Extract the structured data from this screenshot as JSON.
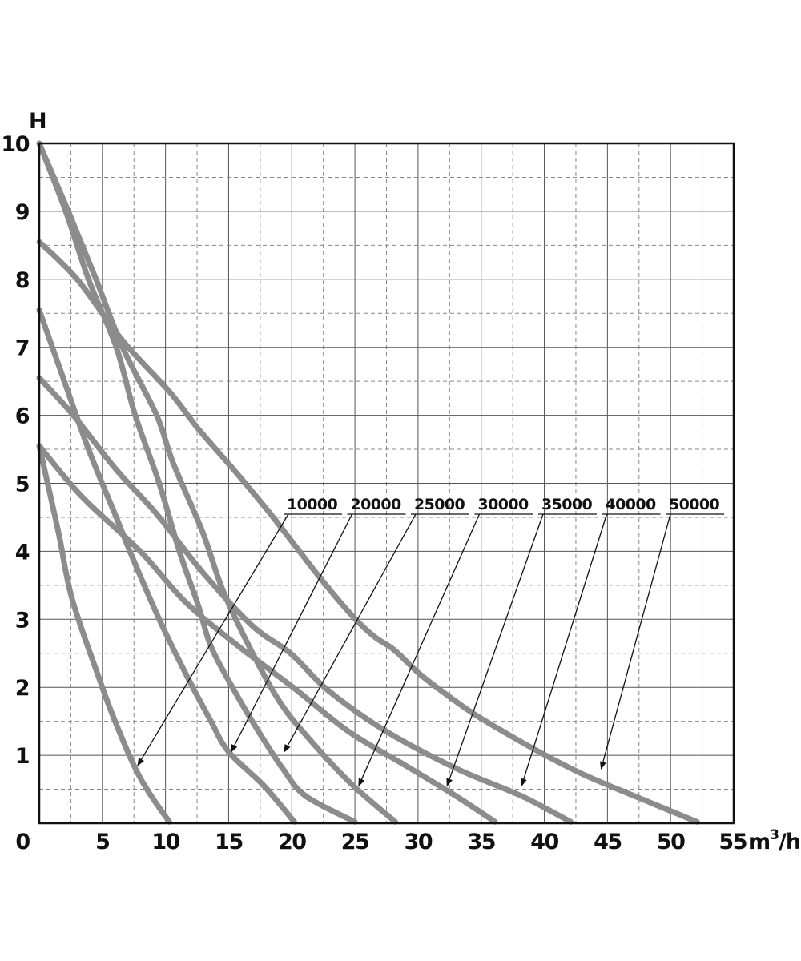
{
  "chart_data": {
    "type": "line",
    "title": "",
    "xlabel": "m³/h",
    "ylabel": "H",
    "xlim": [
      0,
      55
    ],
    "ylim": [
      0,
      10
    ],
    "x_ticks": [
      "0",
      "5",
      "10",
      "15",
      "20",
      "25",
      "30",
      "35",
      "40",
      "45",
      "50",
      "55"
    ],
    "y_ticks": [
      "10",
      "9",
      "8",
      "7",
      "6",
      "5",
      "4",
      "3",
      "2",
      "1"
    ],
    "grid": {
      "major": "solid",
      "minor": "dashed"
    },
    "legend": "labels with leader arrows, top-right",
    "line_color": "#8c8c8c",
    "series": [
      {
        "name": "10000",
        "label_at": [
          7.8,
          0.85
        ],
        "points": [
          [
            0,
            5.55
          ],
          [
            1.5,
            4.3
          ],
          [
            2.6,
            3.3
          ],
          [
            4.8,
            2.1
          ],
          [
            5.9,
            1.55
          ],
          [
            7.5,
            0.85
          ],
          [
            8.7,
            0.45
          ],
          [
            10.3,
            0.02
          ]
        ]
      },
      {
        "name": "20000",
        "label_at": [
          15.2,
          1.05
        ],
        "points": [
          [
            0,
            7.55
          ],
          [
            1.8,
            6.6
          ],
          [
            3.9,
            5.5
          ],
          [
            6.1,
            4.5
          ],
          [
            7.4,
            3.9
          ],
          [
            9.5,
            3.0
          ],
          [
            11.6,
            2.2
          ],
          [
            13.6,
            1.5
          ],
          [
            15.0,
            1.05
          ],
          [
            17.8,
            0.55
          ],
          [
            20.2,
            0.02
          ]
        ]
      },
      {
        "name": "25000",
        "label_at": [
          19.4,
          1.05
        ],
        "points": [
          [
            0,
            10.0
          ],
          [
            2.1,
            9.0
          ],
          [
            3.9,
            8.0
          ],
          [
            6.1,
            7.0
          ],
          [
            7.6,
            6.0
          ],
          [
            9.5,
            5.0
          ],
          [
            11.1,
            4.0
          ],
          [
            12.6,
            3.2
          ],
          [
            13.6,
            2.6
          ],
          [
            15.3,
            2.0
          ],
          [
            17.2,
            1.4
          ],
          [
            19.3,
            0.8
          ],
          [
            21.1,
            0.4
          ],
          [
            25.0,
            0.02
          ]
        ]
      },
      {
        "name": "30000",
        "label_at": [
          25.3,
          0.55
        ],
        "points": [
          [
            0,
            10.0
          ],
          [
            2.3,
            9.0
          ],
          [
            4.5,
            8.0
          ],
          [
            6.6,
            7.0
          ],
          [
            9.3,
            6.0
          ],
          [
            10.6,
            5.3
          ],
          [
            12.9,
            4.3
          ],
          [
            14.6,
            3.4
          ],
          [
            16.9,
            2.5
          ],
          [
            19.0,
            1.8
          ],
          [
            21.1,
            1.3
          ],
          [
            24.6,
            0.6
          ],
          [
            28.2,
            0.02
          ]
        ]
      },
      {
        "name": "35000",
        "label_at": [
          32.3,
          0.55
        ],
        "points": [
          [
            0,
            5.55
          ],
          [
            3.4,
            4.8
          ],
          [
            8.0,
            4.0
          ],
          [
            11.6,
            3.25
          ],
          [
            15.8,
            2.6
          ],
          [
            20.1,
            2.0
          ],
          [
            24.5,
            1.35
          ],
          [
            29.0,
            0.85
          ],
          [
            33.0,
            0.4
          ],
          [
            36.1,
            0.02
          ]
        ]
      },
      {
        "name": "40000",
        "label_at": [
          38.2,
          0.55
        ],
        "points": [
          [
            0,
            6.55
          ],
          [
            2.7,
            6.0
          ],
          [
            6.1,
            5.2
          ],
          [
            9.3,
            4.55
          ],
          [
            12.9,
            3.7
          ],
          [
            16.9,
            2.9
          ],
          [
            19.9,
            2.5
          ],
          [
            22.9,
            1.95
          ],
          [
            27.5,
            1.35
          ],
          [
            33.1,
            0.8
          ],
          [
            38.2,
            0.4
          ],
          [
            42.1,
            0.02
          ]
        ]
      },
      {
        "name": "50000",
        "label_at": [
          44.5,
          0.8
        ],
        "points": [
          [
            0,
            8.55
          ],
          [
            3.0,
            8.0
          ],
          [
            6.6,
            7.1
          ],
          [
            10.3,
            6.35
          ],
          [
            12.6,
            5.8
          ],
          [
            15.4,
            5.2
          ],
          [
            18.1,
            4.6
          ],
          [
            20.4,
            4.05
          ],
          [
            22.5,
            3.55
          ],
          [
            24.8,
            3.05
          ],
          [
            26.5,
            2.75
          ],
          [
            28.1,
            2.55
          ],
          [
            30.1,
            2.2
          ],
          [
            32.2,
            1.9
          ],
          [
            34.5,
            1.6
          ],
          [
            37.2,
            1.3
          ],
          [
            40.1,
            1.0
          ],
          [
            43.3,
            0.7
          ],
          [
            47.4,
            0.38
          ],
          [
            52.1,
            0.02
          ]
        ]
      }
    ]
  }
}
